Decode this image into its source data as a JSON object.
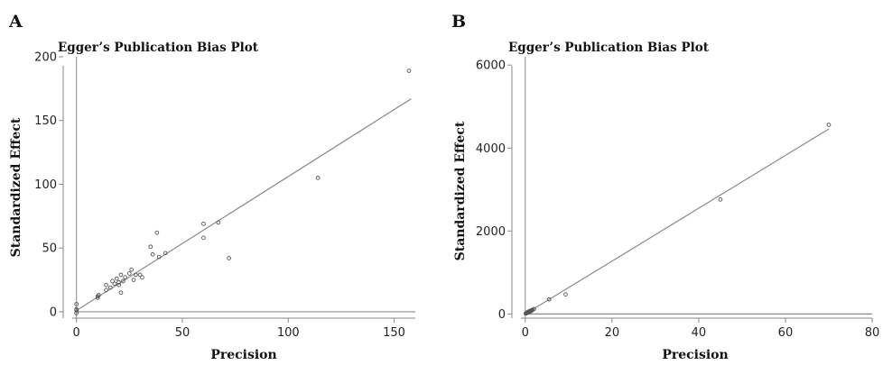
{
  "chart_data": [
    {
      "type": "scatter",
      "panel_label": "A",
      "title": "Egger’s Publication Bias Plot",
      "xlabel": "Precision",
      "ylabel": "Standardized Effect",
      "xlim": [
        -2,
        160
      ],
      "ylim": [
        -5,
        200
      ],
      "xticks": [
        0,
        50,
        100,
        150
      ],
      "yticks": [
        0,
        50,
        100,
        150,
        200
      ],
      "grid": false,
      "reference_line_y": 0,
      "fit_line": {
        "x": [
          0,
          158
        ],
        "y": [
          1,
          167
        ]
      },
      "points": [
        {
          "x": 0,
          "y": 1
        },
        {
          "x": 0,
          "y": 2
        },
        {
          "x": 0,
          "y": 6
        },
        {
          "x": 0,
          "y": -1
        },
        {
          "x": 10,
          "y": 11
        },
        {
          "x": 10,
          "y": 12
        },
        {
          "x": 10.5,
          "y": 13
        },
        {
          "x": 14,
          "y": 17
        },
        {
          "x": 14,
          "y": 21
        },
        {
          "x": 16,
          "y": 19
        },
        {
          "x": 17,
          "y": 24
        },
        {
          "x": 18,
          "y": 22
        },
        {
          "x": 19,
          "y": 26
        },
        {
          "x": 20,
          "y": 21
        },
        {
          "x": 20,
          "y": 23
        },
        {
          "x": 21,
          "y": 15
        },
        {
          "x": 21,
          "y": 29
        },
        {
          "x": 22,
          "y": 24
        },
        {
          "x": 23,
          "y": 27
        },
        {
          "x": 25,
          "y": 30
        },
        {
          "x": 26,
          "y": 33
        },
        {
          "x": 27,
          "y": 25
        },
        {
          "x": 28,
          "y": 29
        },
        {
          "x": 30,
          "y": 29
        },
        {
          "x": 31,
          "y": 27
        },
        {
          "x": 35,
          "y": 51
        },
        {
          "x": 36,
          "y": 45
        },
        {
          "x": 38,
          "y": 62
        },
        {
          "x": 39,
          "y": 43
        },
        {
          "x": 42,
          "y": 46
        },
        {
          "x": 60,
          "y": 69
        },
        {
          "x": 60,
          "y": 58
        },
        {
          "x": 67,
          "y": 70
        },
        {
          "x": 72,
          "y": 42
        },
        {
          "x": 114,
          "y": 105
        },
        {
          "x": 157,
          "y": 189
        }
      ]
    },
    {
      "type": "scatter",
      "panel_label": "B",
      "title": "Egger’s Publication Bias Plot",
      "xlabel": "Precision",
      "ylabel": "Standardized Effect",
      "xlim": [
        -1,
        80
      ],
      "ylim": [
        -100,
        6200
      ],
      "xticks": [
        0,
        20,
        40,
        60,
        80
      ],
      "yticks": [
        0,
        2000,
        4000,
        6000
      ],
      "grid": false,
      "reference_line_y": 0,
      "fit_line": {
        "x": [
          0,
          70
        ],
        "y": [
          0,
          4460
        ]
      },
      "points": [
        {
          "x": 0.1,
          "y": 10
        },
        {
          "x": 0.2,
          "y": 20
        },
        {
          "x": 0.3,
          "y": 30
        },
        {
          "x": 0.4,
          "y": 25
        },
        {
          "x": 0.5,
          "y": 40
        },
        {
          "x": 0.6,
          "y": 35
        },
        {
          "x": 0.7,
          "y": 55
        },
        {
          "x": 0.8,
          "y": 45
        },
        {
          "x": 0.9,
          "y": 60
        },
        {
          "x": 1.0,
          "y": 50
        },
        {
          "x": 1.1,
          "y": 70
        },
        {
          "x": 1.2,
          "y": 80
        },
        {
          "x": 1.4,
          "y": 75
        },
        {
          "x": 1.5,
          "y": 90
        },
        {
          "x": 1.7,
          "y": 100
        },
        {
          "x": 2.0,
          "y": 120
        },
        {
          "x": 5.5,
          "y": 350
        },
        {
          "x": 9.3,
          "y": 470
        },
        {
          "x": 45,
          "y": 2760
        },
        {
          "x": 70,
          "y": 4560
        }
      ]
    }
  ]
}
